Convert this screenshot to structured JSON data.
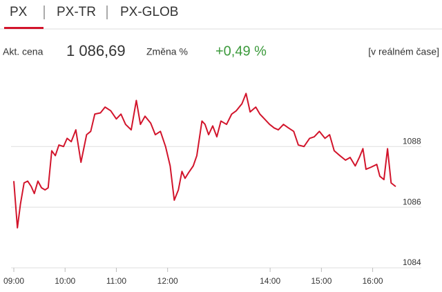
{
  "tabs": [
    "PX",
    "PX-TR",
    "PX-GLOB"
  ],
  "quote": {
    "price_label": "Akt. cena",
    "price": "1 086,69",
    "change_label": "Změna %",
    "change": "+0,49 %",
    "realtime": "[v reálném čase]"
  },
  "chart_data": {
    "type": "line",
    "x": [
      9.0,
      9.07,
      9.13,
      9.2,
      9.27,
      9.34,
      9.4,
      9.47,
      9.54,
      9.61,
      9.67,
      9.74,
      9.81,
      9.88,
      9.97,
      10.04,
      10.12,
      10.21,
      10.31,
      10.42,
      10.5,
      10.58,
      10.69,
      10.78,
      10.89,
      11.0,
      11.09,
      11.18,
      11.29,
      11.39,
      11.47,
      11.56,
      11.67,
      11.76,
      11.86,
      11.96,
      12.05,
      12.13,
      12.21,
      12.28,
      12.34,
      12.41,
      12.5,
      12.57,
      12.67,
      12.73,
      12.8,
      12.88,
      12.96,
      13.04,
      13.15,
      13.25,
      13.34,
      13.45,
      13.53,
      13.61,
      13.72,
      13.8,
      13.89,
      13.99,
      14.08,
      14.16,
      14.26,
      14.36,
      14.46,
      14.55,
      14.66,
      14.77,
      14.86,
      14.96,
      15.07,
      15.16,
      15.25,
      15.36,
      15.47,
      15.56,
      15.66,
      15.74,
      15.81,
      15.87,
      15.97,
      16.08,
      16.14,
      16.22,
      16.29,
      16.36,
      16.45
    ],
    "series": [
      {
        "name": "PX",
        "color": "#d2142b",
        "values": [
          1086.86,
          1085.32,
          1086.11,
          1086.8,
          1086.86,
          1086.68,
          1086.45,
          1086.86,
          1086.64,
          1086.57,
          1086.64,
          1087.86,
          1087.7,
          1088.05,
          1088.0,
          1088.27,
          1088.16,
          1088.55,
          1087.48,
          1088.39,
          1088.5,
          1089.07,
          1089.11,
          1089.3,
          1089.18,
          1088.91,
          1089.07,
          1088.73,
          1088.55,
          1089.52,
          1088.73,
          1089.0,
          1088.77,
          1088.39,
          1088.5,
          1088.0,
          1087.36,
          1086.23,
          1086.57,
          1087.18,
          1086.95,
          1087.14,
          1087.36,
          1087.7,
          1088.84,
          1088.73,
          1088.39,
          1088.68,
          1088.32,
          1088.84,
          1088.73,
          1089.07,
          1089.18,
          1089.41,
          1089.75,
          1089.14,
          1089.3,
          1089.07,
          1088.91,
          1088.73,
          1088.61,
          1088.55,
          1088.73,
          1088.61,
          1088.5,
          1088.05,
          1088.0,
          1088.27,
          1088.32,
          1088.5,
          1088.27,
          1088.39,
          1087.86,
          1087.7,
          1087.55,
          1087.64,
          1087.36,
          1087.64,
          1087.93,
          1087.25,
          1087.32,
          1087.41,
          1087.02,
          1086.91,
          1087.93,
          1086.8,
          1086.68
        ]
      }
    ],
    "xlim": [
      9,
      16.45
    ],
    "xticks": [
      {
        "value": 9,
        "label": "09:00"
      },
      {
        "value": 10,
        "label": "10:00"
      },
      {
        "value": 11,
        "label": "11:00"
      },
      {
        "value": 12,
        "label": "12:00"
      },
      {
        "value": 14,
        "label": "14:00"
      },
      {
        "value": 15,
        "label": "15:00"
      },
      {
        "value": 16,
        "label": "16:00"
      }
    ],
    "ylim": [
      1084,
      1090.1
    ],
    "yticks": [
      1084,
      1086,
      1088
    ],
    "grid": true
  }
}
